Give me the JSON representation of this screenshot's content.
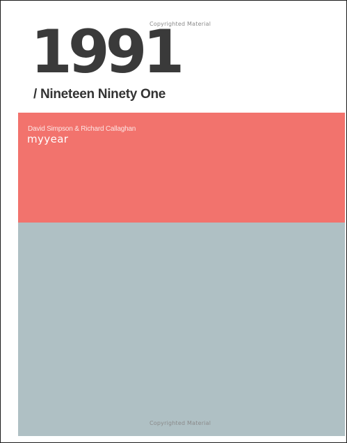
{
  "cover": {
    "watermark_top": "Copyrighted Material",
    "year": "1991",
    "subtitle": "/ Nineteen Ninety One",
    "authors": "David Simpson & Richard Callaghan",
    "series_logo": "myyear",
    "watermark_bottom": "Copyrighted Material"
  },
  "colors": {
    "red_band": "#f2736d",
    "blue_band": "#afc0c4",
    "title_text": "#3a3a3a"
  }
}
